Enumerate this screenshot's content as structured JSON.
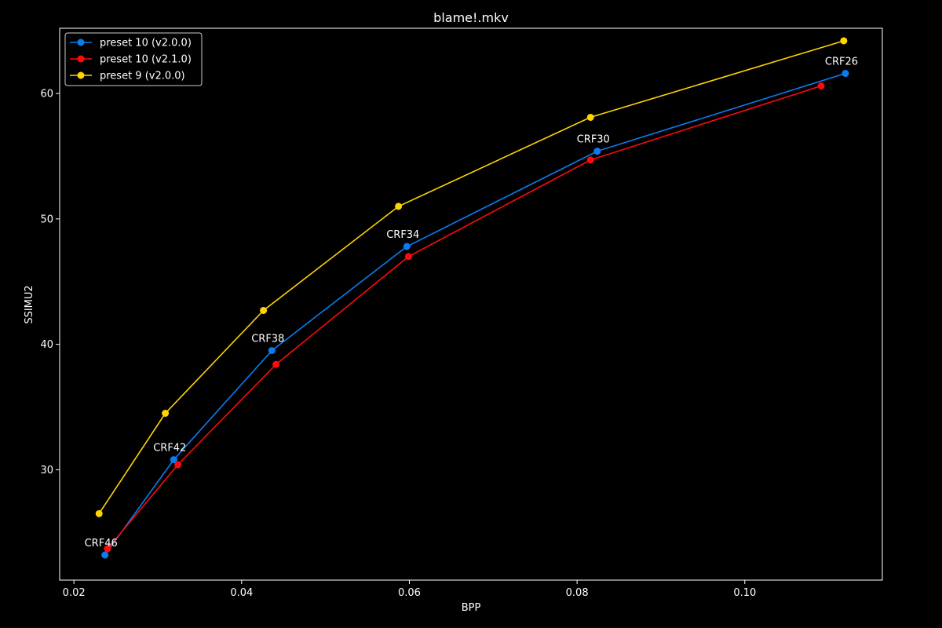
{
  "chart_data": {
    "type": "line",
    "title": "blame!.mkv",
    "xlabel": "BPP",
    "ylabel": "SSIMU2",
    "xlim": [
      0.0183,
      0.1164
    ],
    "ylim": [
      21.2,
      65.2
    ],
    "x_ticks": [
      0.02,
      0.04,
      0.06,
      0.08,
      0.1
    ],
    "x_tick_labels": [
      "0.02",
      "0.04",
      "0.06",
      "0.08",
      "0.10"
    ],
    "y_ticks": [
      30,
      40,
      50,
      60
    ],
    "y_tick_labels": [
      "30",
      "40",
      "50",
      "60"
    ],
    "grid": false,
    "legend_position": "top-left",
    "series": [
      {
        "name": "preset 10 (v2.0.0)",
        "color": "#0a7cf0",
        "x": [
          0.0237,
          0.0319,
          0.0436,
          0.0597,
          0.0824,
          0.112
        ],
        "y": [
          23.2,
          30.8,
          39.5,
          47.8,
          55.4,
          61.6
        ]
      },
      {
        "name": "preset 10 (v2.1.0)",
        "color": "#ff0a0a",
        "x": [
          0.024,
          0.0324,
          0.0441,
          0.0599,
          0.0816,
          0.1091
        ],
        "y": [
          23.7,
          30.4,
          38.4,
          47.0,
          54.7,
          60.6
        ]
      },
      {
        "name": "preset 9 (v2.0.0)",
        "color": "#ffd500",
        "x": [
          0.023,
          0.0309,
          0.0426,
          0.0587,
          0.0816,
          0.1118
        ],
        "y": [
          26.5,
          34.5,
          42.7,
          51.0,
          58.1,
          64.2
        ]
      }
    ],
    "annotations": [
      {
        "text": "CRF46",
        "x": 0.0237,
        "y": 23.2
      },
      {
        "text": "CRF42",
        "x": 0.0319,
        "y": 30.8
      },
      {
        "text": "CRF38",
        "x": 0.0436,
        "y": 39.5
      },
      {
        "text": "CRF34",
        "x": 0.0597,
        "y": 47.8
      },
      {
        "text": "CRF30",
        "x": 0.0824,
        "y": 55.4
      },
      {
        "text": "CRF26",
        "x": 0.112,
        "y": 61.6
      }
    ]
  }
}
